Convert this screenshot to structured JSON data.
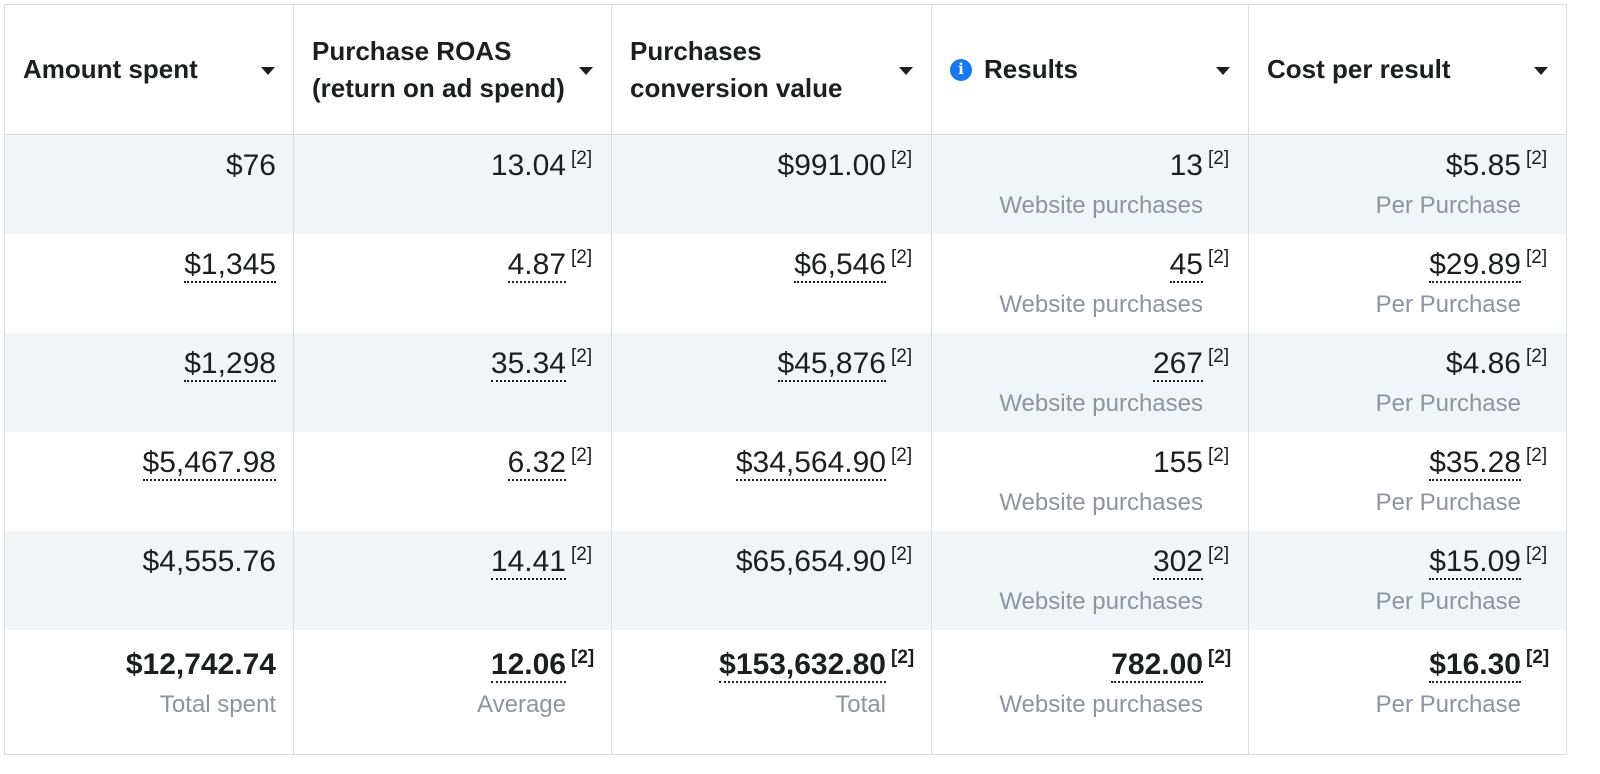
{
  "table": {
    "headers": [
      {
        "text": "Amount spent"
      },
      {
        "text": "Purchase ROAS (return on ad spend)"
      },
      {
        "text": "Purchases conversion value"
      },
      {
        "text": "Results",
        "info": true
      },
      {
        "text": "Cost per result"
      }
    ],
    "rows": [
      [
        {
          "text": "$76",
          "dotted": false
        },
        {
          "text": "13.04",
          "note": "[2]",
          "dotted": false
        },
        {
          "text": "$991.00",
          "note": "[2]",
          "dotted": false
        },
        {
          "text": "13",
          "note": "[2]",
          "sub": "Website purchases",
          "dotted": false
        },
        {
          "text": "$5.85",
          "note": "[2]",
          "sub": "Per Purchase",
          "dotted": false
        }
      ],
      [
        {
          "text": "$1,345",
          "dotted": true
        },
        {
          "text": "4.87",
          "note": "[2]",
          "dotted": true
        },
        {
          "text": "$6,546",
          "note": "[2]",
          "dotted": true
        },
        {
          "text": "45",
          "note": "[2]",
          "sub": "Website purchases",
          "dotted": true
        },
        {
          "text": "$29.89",
          "note": "[2]",
          "sub": "Per Purchase",
          "dotted": true
        }
      ],
      [
        {
          "text": "$1,298",
          "dotted": true
        },
        {
          "text": "35.34",
          "note": "[2]",
          "dotted": true
        },
        {
          "text": "$45,876",
          "note": "[2]",
          "dotted": true
        },
        {
          "text": "267",
          "note": "[2]",
          "sub": "Website purchases",
          "dotted": true
        },
        {
          "text": "$4.86",
          "note": "[2]",
          "sub": "Per Purchase",
          "dotted": false
        }
      ],
      [
        {
          "text": "$5,467.98",
          "dotted": true
        },
        {
          "text": "6.32",
          "note": "[2]",
          "dotted": true
        },
        {
          "text": "$34,564.90",
          "note": "[2]",
          "dotted": true
        },
        {
          "text": "155",
          "note": "[2]",
          "sub": "Website purchases",
          "dotted": false
        },
        {
          "text": "$35.28",
          "note": "[2]",
          "sub": "Per Purchase",
          "dotted": true
        }
      ],
      [
        {
          "text": "$4,555.76",
          "dotted": false
        },
        {
          "text": "14.41",
          "note": "[2]",
          "dotted": true
        },
        {
          "text": "$65,654.90",
          "note": "[2]",
          "dotted": false
        },
        {
          "text": "302",
          "note": "[2]",
          "sub": "Website purchases",
          "dotted": true
        },
        {
          "text": "$15.09",
          "note": "[2]",
          "sub": "Per Purchase",
          "dotted": true
        }
      ]
    ],
    "totals": [
      {
        "text": "$12,742.74",
        "sub": "Total spent",
        "dotted": false
      },
      {
        "text": "12.06",
        "note": "[2]",
        "sub": "Average",
        "dotted": true
      },
      {
        "text": "$153,632.80",
        "note": "[2]",
        "sub": "Total",
        "dotted": true
      },
      {
        "text": "782.00",
        "note": "[2]",
        "sub": "Website purchases",
        "dotted": true
      },
      {
        "text": "$16.30",
        "note": "[2]",
        "sub": "Per Purchase",
        "dotted": true
      }
    ]
  }
}
